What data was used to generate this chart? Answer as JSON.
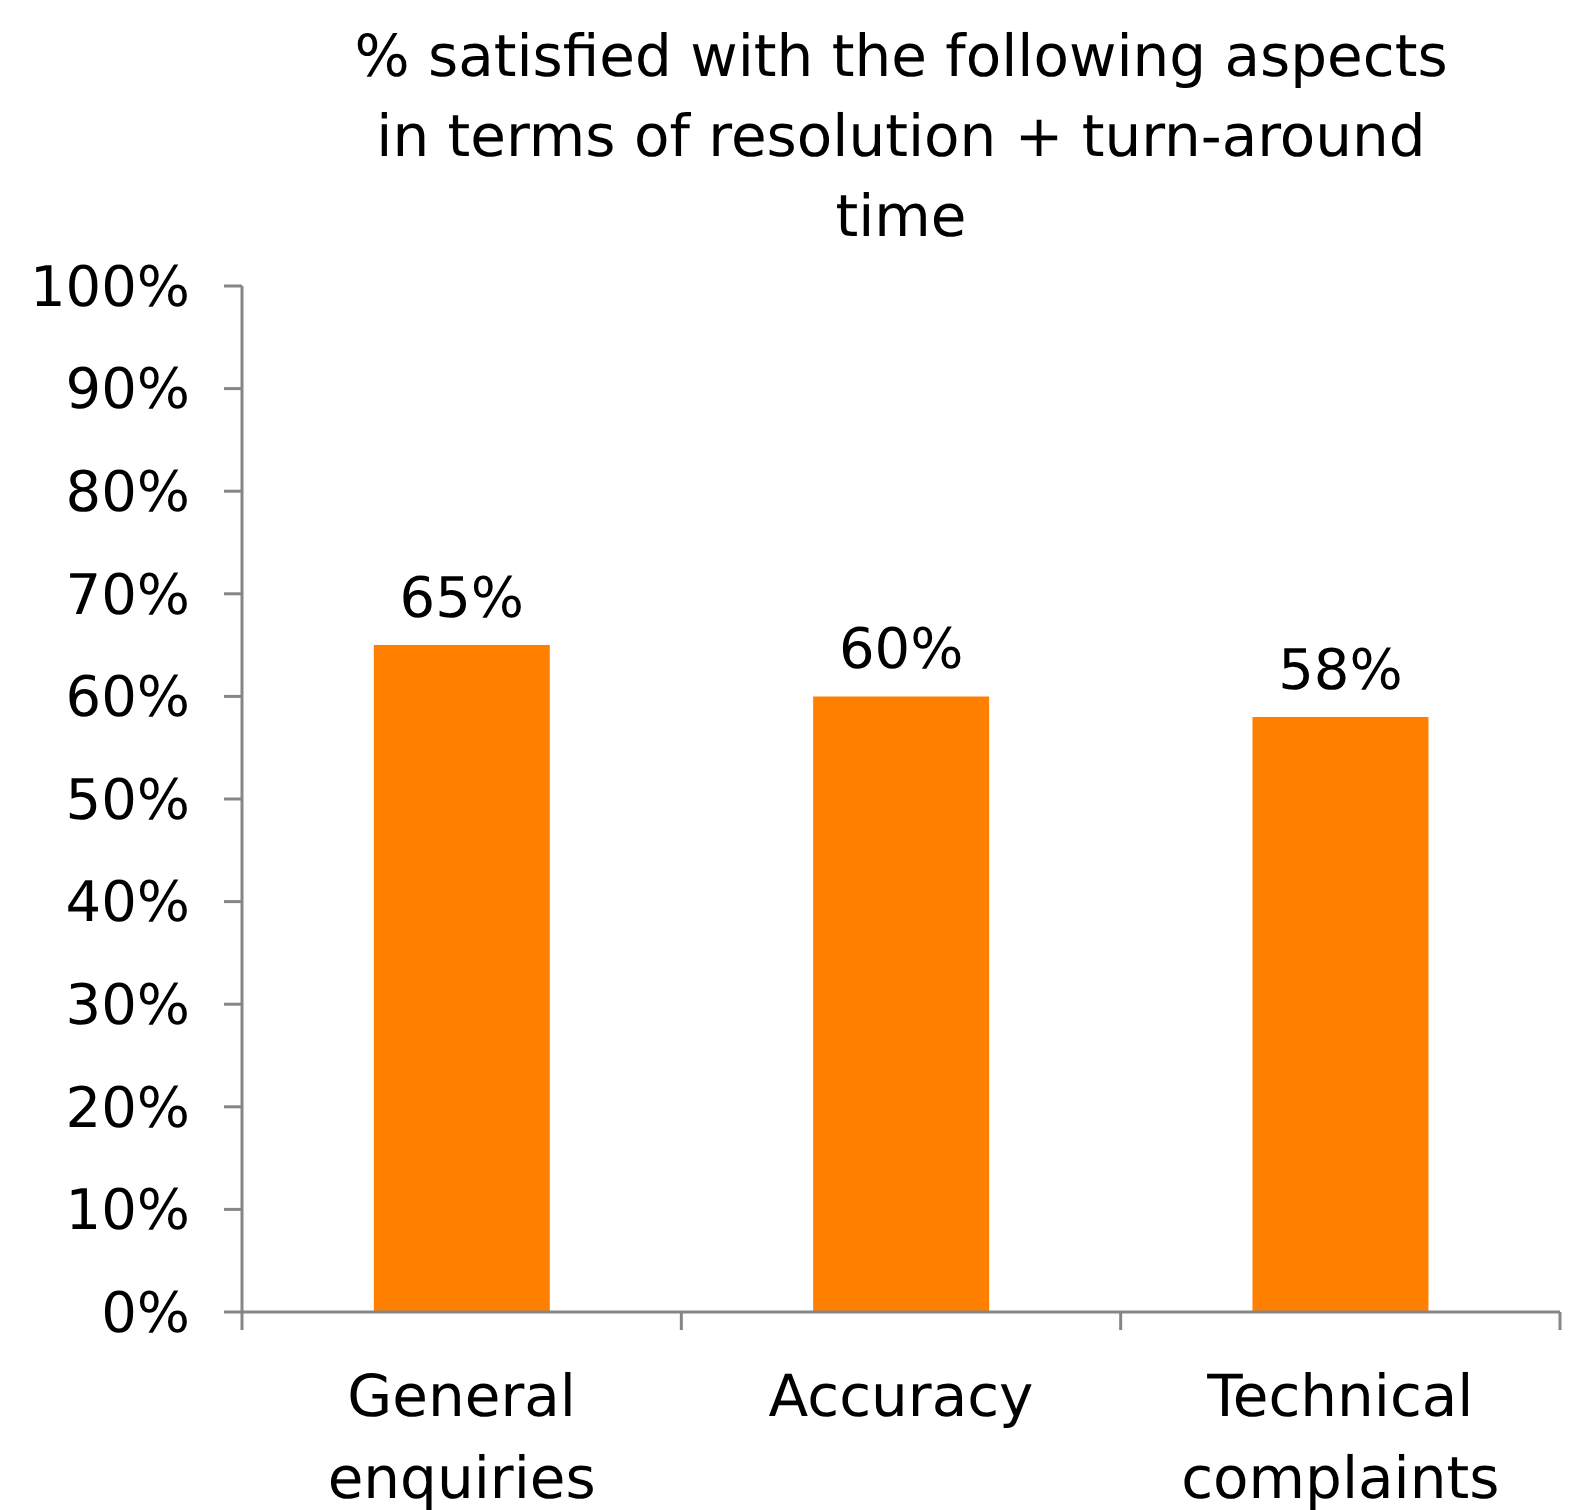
{
  "chart_data": {
    "type": "bar",
    "title": "% satisfied with the following aspects in terms of resolution + turn-around time",
    "categories": [
      "General enquiries",
      "Accuracy",
      "Technical complaints"
    ],
    "values": [
      65,
      60,
      58
    ],
    "value_labels": [
      "65%",
      "60%",
      "58%"
    ],
    "color": "#ff8000",
    "ylim": [
      0,
      100
    ],
    "yticks": [
      {
        "value": 0,
        "label": "0%"
      },
      {
        "value": 10,
        "label": "10%"
      },
      {
        "value": 20,
        "label": "20%"
      },
      {
        "value": 30,
        "label": "30%"
      },
      {
        "value": 40,
        "label": "40%"
      },
      {
        "value": 50,
        "label": "50%"
      },
      {
        "value": 60,
        "label": "60%"
      },
      {
        "value": 70,
        "label": "70%"
      },
      {
        "value": 80,
        "label": "80%"
      },
      {
        "value": 90,
        "label": "90%"
      },
      {
        "value": 100,
        "label": "100%"
      }
    ]
  }
}
